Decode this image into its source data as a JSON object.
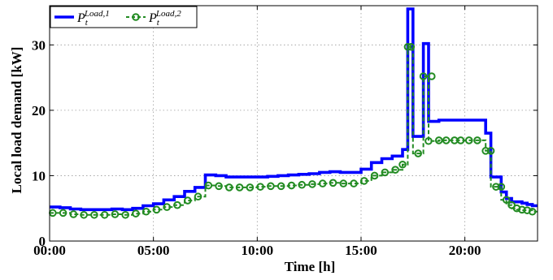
{
  "chart_data": {
    "type": "line",
    "xlabel": "Time [h]",
    "ylabel": "Local load demand [kW]",
    "xlim": [
      0,
      23.5
    ],
    "ylim": [
      0,
      36
    ],
    "x_ticks": [
      {
        "value": 0,
        "label": "00:00"
      },
      {
        "value": 5,
        "label": "05:00"
      },
      {
        "value": 10,
        "label": "10:00"
      },
      {
        "value": 15,
        "label": "15:00"
      },
      {
        "value": 20,
        "label": "20:00"
      }
    ],
    "y_ticks": [
      {
        "value": 0,
        "label": "0"
      },
      {
        "value": 10,
        "label": "10"
      },
      {
        "value": 20,
        "label": "20"
      },
      {
        "value": 30,
        "label": "30"
      }
    ],
    "grid": true,
    "legend_position": "top-left",
    "series": [
      {
        "name": "P",
        "name_sub": "t",
        "name_sup": "Load,1",
        "color": "#0000ff",
        "style": "solid-step",
        "x": [
          0,
          0.5,
          1,
          1.5,
          2,
          2.5,
          3,
          3.5,
          4,
          4.5,
          5,
          5.5,
          6,
          6.5,
          7,
          7.5,
          8,
          8.5,
          9,
          9.5,
          10,
          10.5,
          11,
          11.5,
          12,
          12.5,
          13,
          13.5,
          14,
          14.5,
          15,
          15.5,
          16,
          16.5,
          17,
          17.25,
          17.5,
          17.75,
          18,
          18.25,
          18.5,
          18.75,
          19,
          19.25,
          19.5,
          19.75,
          20,
          20.25,
          20.5,
          20.75,
          21,
          21.25,
          21.5,
          21.75,
          22,
          22.25,
          22.5,
          22.75,
          23,
          23.25
        ],
        "values": [
          5.2,
          5.1,
          4.9,
          4.8,
          4.8,
          4.8,
          4.9,
          4.8,
          5.0,
          5.4,
          5.7,
          6.3,
          6.8,
          7.6,
          8.2,
          10.1,
          10.0,
          9.8,
          9.8,
          9.8,
          9.8,
          9.9,
          10.0,
          10.1,
          10.2,
          10.3,
          10.5,
          10.6,
          10.5,
          10.5,
          11.0,
          12.0,
          12.6,
          13.0,
          14.0,
          35.5,
          16.0,
          16.0,
          30.2,
          18.3,
          18.3,
          18.5,
          18.5,
          18.5,
          18.5,
          18.5,
          18.5,
          18.5,
          18.5,
          18.5,
          16.5,
          9.8,
          9.8,
          7.5,
          6.5,
          6.0,
          6.0,
          5.8,
          5.6,
          5.4
        ]
      },
      {
        "name": "P",
        "name_sub": "t",
        "name_sup": "Load,2",
        "color": "#228b22",
        "style": "dashed-step-circles",
        "x": [
          0,
          0.5,
          1,
          1.5,
          2,
          2.5,
          3,
          3.5,
          4,
          4.5,
          5,
          5.5,
          6,
          6.5,
          7,
          7.5,
          8,
          8.5,
          9,
          9.5,
          10,
          10.5,
          11,
          11.5,
          12,
          12.5,
          13,
          13.5,
          14,
          14.5,
          15,
          15.5,
          16,
          16.5,
          17,
          17.25,
          17.5,
          17.75,
          18,
          18.25,
          18.5,
          18.75,
          19,
          19.25,
          19.5,
          19.75,
          20,
          20.25,
          20.5,
          20.75,
          21,
          21.25,
          21.5,
          21.75,
          22,
          22.25,
          22.5,
          22.75,
          23,
          23.25
        ],
        "values": [
          4.3,
          4.3,
          4.1,
          4.0,
          4.0,
          4.0,
          4.1,
          4.0,
          4.2,
          4.5,
          4.8,
          5.2,
          5.5,
          6.2,
          6.8,
          8.5,
          8.4,
          8.2,
          8.2,
          8.2,
          8.3,
          8.4,
          8.4,
          8.5,
          8.6,
          8.7,
          8.8,
          8.9,
          8.8,
          8.8,
          9.2,
          10.0,
          10.5,
          10.9,
          11.7,
          29.7,
          13.4,
          13.4,
          25.2,
          15.3,
          15.3,
          15.4,
          15.4,
          15.4,
          15.4,
          15.4,
          15.4,
          15.4,
          15.4,
          15.4,
          13.8,
          8.3,
          8.3,
          6.3,
          5.5,
          5.0,
          4.8,
          4.7,
          4.7,
          4.5
        ],
        "marker_x": [
          0.15,
          0.65,
          1.15,
          1.65,
          2.15,
          2.65,
          3.15,
          3.65,
          4.15,
          4.65,
          5.15,
          5.65,
          6.15,
          6.65,
          7.15,
          7.65,
          8.15,
          8.65,
          9.15,
          9.65,
          10.15,
          10.65,
          11.15,
          11.65,
          12.15,
          12.65,
          13.15,
          13.65,
          14.15,
          14.65,
          15.15,
          15.65,
          16.15,
          16.65,
          17.0,
          17.4,
          17.25,
          17.75,
          18.0,
          18.4,
          18.25,
          18.75,
          19.1,
          19.5,
          19.8,
          20.2,
          20.6,
          21.0,
          21.25,
          21.5,
          21.75,
          22.0,
          22.25,
          22.5,
          22.75,
          23.0,
          23.25
        ],
        "marker_y": [
          4.3,
          4.3,
          4.1,
          4.0,
          4.0,
          4.0,
          4.1,
          4.0,
          4.2,
          4.5,
          4.8,
          5.2,
          5.5,
          6.2,
          6.8,
          8.5,
          8.4,
          8.2,
          8.2,
          8.2,
          8.3,
          8.4,
          8.4,
          8.5,
          8.6,
          8.7,
          8.8,
          8.9,
          8.8,
          8.8,
          9.2,
          10.0,
          10.5,
          10.9,
          11.7,
          29.7,
          29.7,
          13.4,
          25.2,
          25.2,
          15.3,
          15.4,
          15.4,
          15.4,
          15.4,
          15.4,
          15.4,
          13.8,
          13.8,
          8.3,
          8.3,
          6.3,
          5.5,
          5.0,
          4.8,
          4.7,
          4.5
        ]
      }
    ]
  }
}
